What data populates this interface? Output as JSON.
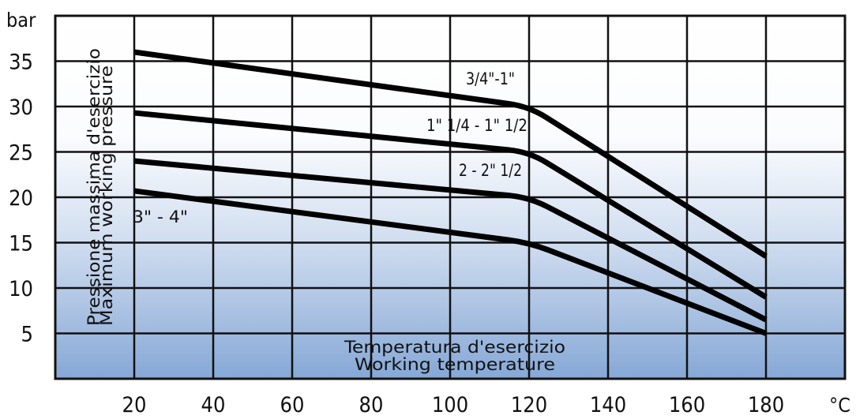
{
  "chart_data": {
    "type": "line",
    "y_unit": "bar",
    "x_unit": "°C",
    "ylabel_lines": [
      "Pressione massima d'esercizio",
      "Maximum working pressure"
    ],
    "xlabel_lines": [
      "Temperatura d'esercizio",
      "Working temperature"
    ],
    "x_ticks": [
      20,
      40,
      60,
      80,
      100,
      120,
      140,
      160,
      180
    ],
    "y_ticks": [
      5,
      10,
      15,
      20,
      25,
      30,
      35
    ],
    "xlim": [
      0,
      200
    ],
    "ylim": [
      0,
      40
    ],
    "grid": true,
    "series": [
      {
        "name": "3/4\"-1\"",
        "x": [
          20,
          120,
          180
        ],
        "y": [
          36,
          30,
          13.5
        ]
      },
      {
        "name": "1\" 1/4 - 1\" 1/2",
        "x": [
          20,
          120,
          180
        ],
        "y": [
          29.3,
          25,
          9
        ]
      },
      {
        "name": "2 - 2\" 1/2",
        "x": [
          20,
          120,
          180
        ],
        "y": [
          24,
          20,
          6.5
        ]
      },
      {
        "name": "3\" - 4\"",
        "x": [
          20,
          120,
          180
        ],
        "y": [
          20.7,
          15,
          5
        ]
      }
    ]
  }
}
